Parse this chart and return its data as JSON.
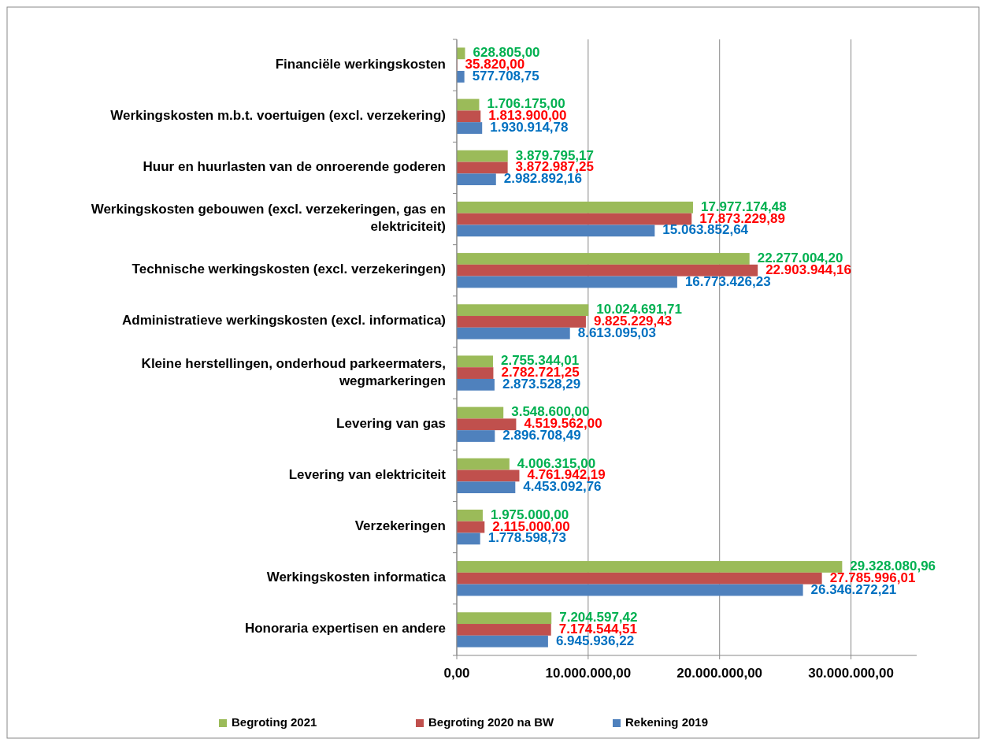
{
  "chart_data": {
    "type": "bar",
    "orientation": "horizontal",
    "categories": [
      "Financiële werkingskosten",
      "Werkingskosten m.b.t. voertuigen (excl. verzekering)",
      "Huur en huurlasten van de onroerende goderen",
      "Werkingskosten gebouwen (excl. verzekeringen, gas en elektriciteit)",
      "Technische werkingskosten (excl. verzekeringen)",
      "Administratieve werkingskosten (excl. informatica)",
      "Kleine herstellingen, onderhoud parkeermaters, wegmarkeringen",
      "Levering van gas",
      "Levering van elektriciteit",
      "Verzekeringen",
      "Werkingskosten informatica",
      "Honoraria expertisen en andere"
    ],
    "series": [
      {
        "name": "Begroting 2021",
        "color": "#9bbb59",
        "values": [
          628805.0,
          1706175.0,
          3879795.17,
          17977174.48,
          22277004.2,
          10024691.71,
          2755344.01,
          3548600.0,
          4006315.0,
          1975000.0,
          29328080.96,
          7204597.42
        ],
        "value_labels": [
          "628.805,00",
          "1.706.175,00",
          "3.879.795,17",
          "17.977.174,48",
          "22.277.004,20",
          "10.024.691,71",
          "2.755.344,01",
          "3.548.600,00",
          "4.006.315,00",
          "1.975.000,00",
          "29.328.080,96",
          "7.204.597,42"
        ]
      },
      {
        "name": "Begroting 2020 na BW",
        "color": "#c0504d",
        "values": [
          35820.0,
          1813900.0,
          3872987.25,
          17873229.89,
          22903944.16,
          9825229.43,
          2782721.25,
          4519562.0,
          4761942.19,
          2115000.0,
          27785996.01,
          7174544.51
        ],
        "value_labels": [
          "35.820,00",
          "1.813.900,00",
          "3.872.987,25",
          "17.873.229,89",
          "22.903.944,16",
          "9.825.229,43",
          "2.782.721,25",
          "4.519.562,00",
          "4.761.942,19",
          "2.115.000,00",
          "27.785.996,01",
          "7.174.544,51"
        ]
      },
      {
        "name": "Rekening 2019",
        "color": "#4f81bd",
        "values": [
          577708.75,
          1930914.78,
          2982892.16,
          15063852.64,
          16773426.23,
          8613095.03,
          2873528.29,
          2896708.49,
          4453092.76,
          1778598.73,
          26346272.21,
          6945936.22
        ],
        "value_labels": [
          "577.708,75",
          "1.930.914,78",
          "2.982.892,16",
          "15.063.852,64",
          "16.773.426,23",
          "8.613.095,03",
          "2.873.528,29",
          "2.896.708,49",
          "4.453.092,76",
          "1.778.598,73",
          "26.346.272,21",
          "6.945.936,22"
        ]
      }
    ],
    "xlim": [
      0,
      35000000
    ],
    "xticks": [
      {
        "value": 0,
        "label": "0,00"
      },
      {
        "value": 10000000,
        "label": "10.000.000,00"
      },
      {
        "value": 20000000,
        "label": "20.000.000,00"
      },
      {
        "value": 30000000,
        "label": "30.000.000,00"
      }
    ],
    "grid": "x",
    "legend": "bottom"
  }
}
